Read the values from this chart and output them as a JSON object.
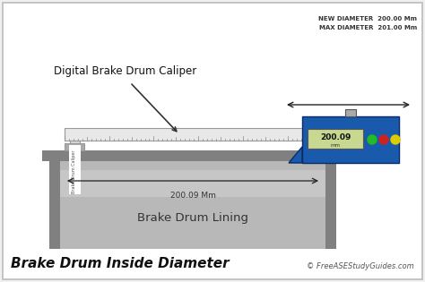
{
  "bg_color": "#f0f0f0",
  "border_color": "#bbbbbb",
  "title": "Brake Drum Inside Diameter",
  "copyright": "© FreeASEStudyGuides.com",
  "label_caliper": "Digital Brake Drum Caliper",
  "label_drum": "Brake Drum Lining",
  "label_measurement": "200.09 Mm",
  "label_side_text": "Brake Drum Caliper",
  "display_reading": "200.09",
  "display_reading_sub": "mm",
  "new_diam_label": "NEW DIAMETER  200.00 Mm",
  "max_diam_label": "MAX DIAMETER  201.00 Mm",
  "drum_outer_color": "#808080",
  "drum_inner_color": "#b8b8b8",
  "drum_inner_light": "#d0d0d0",
  "display_box_color": "#1a5aad",
  "display_bg": "#c8d890",
  "ruler_color": "#e8e8e8",
  "ruler_tick_color": "#888888",
  "leg_color": "#d8d8d8",
  "leg_edge": "#999999",
  "green_dot": "#22bb22",
  "red_dot": "#cc2222",
  "yellow_dot": "#ddcc00",
  "arrow_color": "#222222",
  "text_color": "#222222",
  "foot_color": "#aaaaaa"
}
